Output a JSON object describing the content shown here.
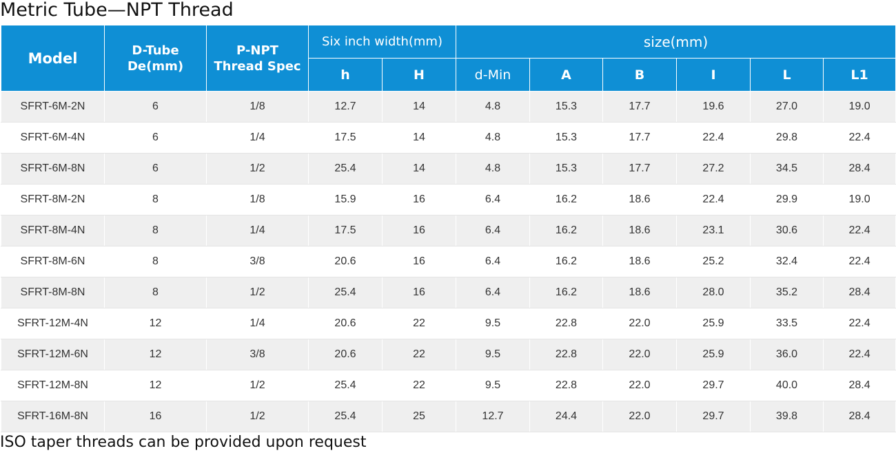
{
  "title": "Metric Tube—NPT Thread",
  "footnote": "ISO taper threads can be provided upon request",
  "header": {
    "model": "Model",
    "d_tube_line1": "D-Tube",
    "d_tube_line2": "De(mm)",
    "p_npt_line1": "P-NPT",
    "p_npt_line2": "Thread Spec",
    "six_inch": "Six inch width(mm)",
    "size": "size(mm)",
    "sub": [
      "h",
      "H",
      "d-Min",
      "A",
      "B",
      "I",
      "L",
      "L1"
    ]
  },
  "rows": [
    [
      "SFRT-6M-2N",
      "6",
      "1/8",
      "12.7",
      "14",
      "4.8",
      "15.3",
      "17.7",
      "19.6",
      "27.0",
      "19.0"
    ],
    [
      "SFRT-6M-4N",
      "6",
      "1/4",
      "17.5",
      "14",
      "4.8",
      "15.3",
      "17.7",
      "22.4",
      "29.8",
      "22.4"
    ],
    [
      "SFRT-6M-8N",
      "6",
      "1/2",
      "25.4",
      "14",
      "4.8",
      "15.3",
      "17.7",
      "27.2",
      "34.5",
      "28.4"
    ],
    [
      "SFRT-8M-2N",
      "8",
      "1/8",
      "15.9",
      "16",
      "6.4",
      "16.2",
      "18.6",
      "22.4",
      "29.9",
      "19.0"
    ],
    [
      "SFRT-8M-4N",
      "8",
      "1/4",
      "17.5",
      "16",
      "6.4",
      "16.2",
      "18.6",
      "23.1",
      "30.6",
      "22.4"
    ],
    [
      "SFRT-8M-6N",
      "8",
      "3/8",
      "20.6",
      "16",
      "6.4",
      "16.2",
      "18.6",
      "25.2",
      "32.4",
      "22.4"
    ],
    [
      "SFRT-8M-8N",
      "8",
      "1/2",
      "25.4",
      "16",
      "6.4",
      "16.2",
      "18.6",
      "28.0",
      "35.2",
      "28.4"
    ],
    [
      "SFRT-12M-4N",
      "12",
      "1/4",
      "20.6",
      "22",
      "9.5",
      "22.8",
      "22.0",
      "25.9",
      "33.5",
      "22.4"
    ],
    [
      "SFRT-12M-6N",
      "12",
      "3/8",
      "20.6",
      "22",
      "9.5",
      "22.8",
      "22.0",
      "25.9",
      "36.0",
      "22.4"
    ],
    [
      "SFRT-12M-8N",
      "12",
      "1/2",
      "25.4",
      "22",
      "9.5",
      "22.8",
      "22.0",
      "29.7",
      "40.0",
      "28.4"
    ],
    [
      "SFRT-16M-8N",
      "16",
      "1/2",
      "25.4",
      "25",
      "12.7",
      "24.4",
      "22.0",
      "29.7",
      "39.8",
      "28.4"
    ]
  ],
  "colors": {
    "header_bg": "#0f8fd5",
    "header_text": "#ffffff",
    "row_alt_bg": "#efefef",
    "row_bg": "#ffffff"
  }
}
